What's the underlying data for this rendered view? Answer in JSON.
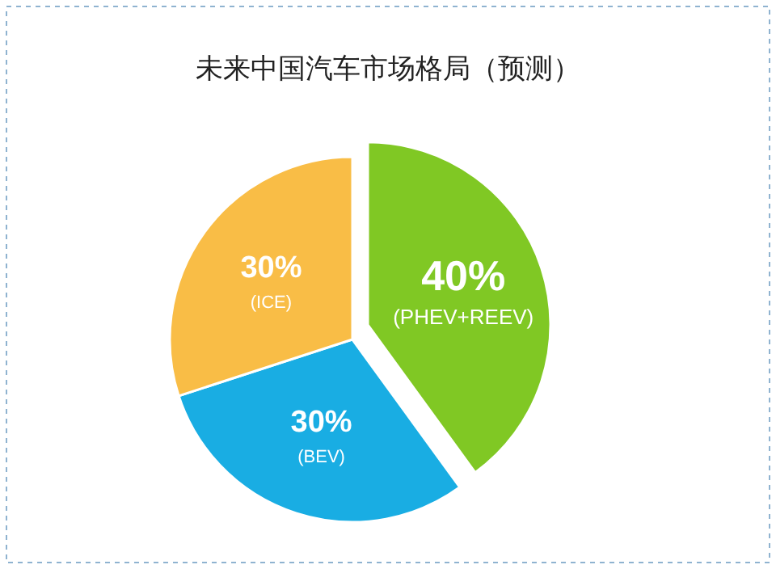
{
  "chart_data": {
    "type": "pie",
    "title": "未来中国汽车市场格局（预测）",
    "categories": [
      "(PHEV+REEV)",
      "(BEV)",
      "(ICE)"
    ],
    "values": [
      40,
      30,
      30
    ],
    "colors": [
      "#80c824",
      "#19ade3",
      "#f9bd46"
    ],
    "value_labels": [
      "40%",
      "30%",
      "30%"
    ]
  }
}
